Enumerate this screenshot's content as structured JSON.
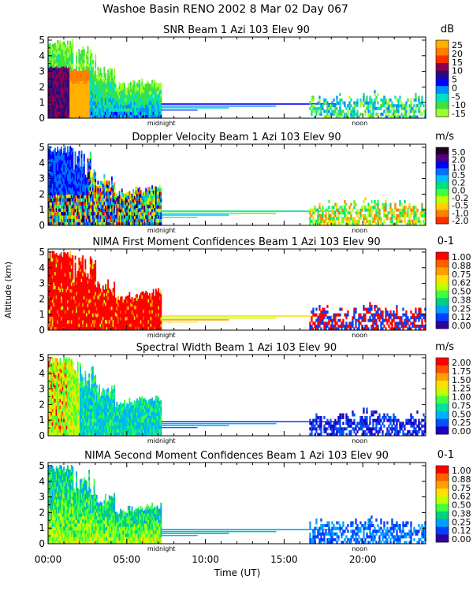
{
  "figure": {
    "title": "Washoe Basin RENO 2002    8 Mar 02 Day 067",
    "ylabel": "Altitude (km)",
    "xlabel": "Time (UT)",
    "x_ticks": [
      "00:00",
      "05:00",
      "10:00",
      "15:00",
      "20:00"
    ],
    "x_tick_hours": [
      0,
      5,
      10,
      15,
      20
    ],
    "x_range_hours": [
      0,
      24
    ],
    "y_ticks": [
      "0",
      "1",
      "2",
      "3",
      "4",
      "5"
    ],
    "y_range_km": [
      0,
      5.2
    ],
    "markers": [
      {
        "label": "midnight",
        "hour": 7.2
      },
      {
        "label": "noon",
        "hour": 19.8
      }
    ]
  },
  "chart_data": [
    {
      "type": "heatmap",
      "title": "SNR Beam 1 Azi 103 Elev 90",
      "unit": "dB",
      "colorbar_ticks": [
        "25",
        "20",
        "15",
        "10",
        "5",
        "0",
        "-5",
        "-10",
        "-15"
      ],
      "colors": [
        "#ffb000",
        "#ff8000",
        "#ff3000",
        "#8b0050",
        "#2a0a80",
        "#0000ff",
        "#0090ff",
        "#00e0c0",
        "#40e040",
        "#a0ff30"
      ],
      "scheme": "snr"
    },
    {
      "type": "heatmap",
      "title": "Doppler Velocity Beam 1 Azi 103 Elev 90",
      "unit": "m/s",
      "colorbar_ticks": [
        "5.0",
        "2.0",
        "1.0",
        "0.5",
        "0.2",
        "0.0",
        "-0.2",
        "-0.5",
        "-1.0",
        "-2.0"
      ],
      "colors": [
        "#200020",
        "#500080",
        "#0000ff",
        "#0070ff",
        "#00c0ff",
        "#00e080",
        "#40ff40",
        "#c0ff00",
        "#ffd000",
        "#ff8000",
        "#ff3000"
      ],
      "scheme": "doppler"
    },
    {
      "type": "heatmap",
      "title": "NIMA First Moment Confidences Beam 1 Azi 103 Elev 90",
      "unit": "0-1",
      "colorbar_ticks": [
        "1.00",
        "0.88",
        "0.75",
        "0.62",
        "0.50",
        "0.38",
        "0.25",
        "0.12",
        "0.00"
      ],
      "colors": [
        "#ff0000",
        "#ff6000",
        "#ffa000",
        "#ffe000",
        "#c0ff00",
        "#40ff40",
        "#00d080",
        "#00a0ff",
        "#0040ff",
        "#3000a0"
      ],
      "scheme": "conf1"
    },
    {
      "type": "heatmap",
      "title": "Spectral Width Beam 1 Azi 103 Elev 90",
      "unit": "m/s",
      "colorbar_ticks": [
        "2.00",
        "1.75",
        "1.50",
        "1.25",
        "1.00",
        "0.75",
        "0.50",
        "0.25",
        "0.00"
      ],
      "colors": [
        "#ff0000",
        "#ff5000",
        "#ffa000",
        "#ffe000",
        "#c0ff00",
        "#40ff40",
        "#00e0a0",
        "#00b0ff",
        "#0050ff",
        "#2000c0"
      ],
      "scheme": "width"
    },
    {
      "type": "heatmap",
      "title": "NIMA Second Moment Confidences Beam 1 Azi 103 Elev 90",
      "unit": "0-1",
      "colorbar_ticks": [
        "1.00",
        "0.88",
        "0.75",
        "0.62",
        "0.50",
        "0.38",
        "0.25",
        "0.12",
        "0.00"
      ],
      "colors": [
        "#ff0000",
        "#ff6000",
        "#ffa000",
        "#ffe000",
        "#c0ff00",
        "#40ff40",
        "#00d080",
        "#00a0ff",
        "#0040ff",
        "#3000a0"
      ],
      "scheme": "conf2"
    }
  ]
}
